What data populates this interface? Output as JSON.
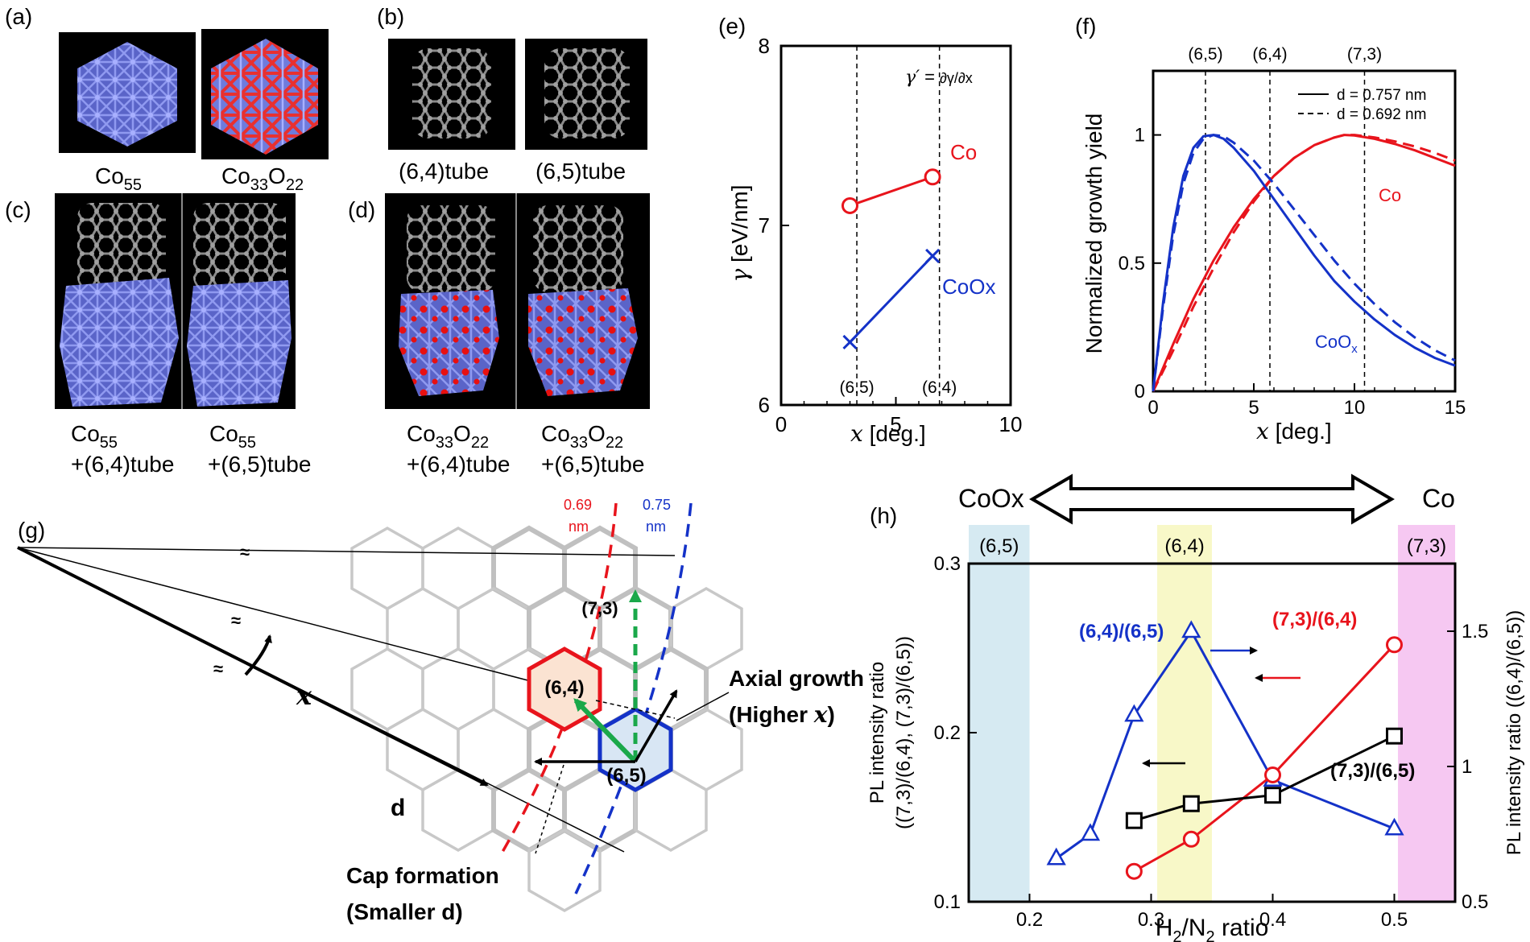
{
  "panels": {
    "a": {
      "tag": "(a)",
      "cap1_main": "Co",
      "cap1_sub": "55",
      "cap2_co": "Co",
      "cap2_sub1": "33",
      "cap2_o": "O",
      "cap2_sub2": "22"
    },
    "b": {
      "tag": "(b)",
      "cap1": "(6,4)tube",
      "cap2": "(6,5)tube"
    },
    "c": {
      "tag": "(c)",
      "cap1_main": "Co",
      "cap1_sub": "55",
      "cap1_line2": "+(6,4)tube",
      "cap2_main": "Co",
      "cap2_sub": "55",
      "cap2_line2": "+(6,5)tube"
    },
    "d": {
      "tag": "(d)",
      "cap_co": "Co",
      "cap_sub1": "33",
      "cap_o": "O",
      "cap_sub2": "22",
      "cap1_line2": "+(6,4)tube",
      "cap2_line2": "+(6,5)tube"
    },
    "g": {
      "tag": "(g)",
      "x_label": "x",
      "d_label": "d",
      "red_label": "0.69",
      "red_unit": "nm",
      "blue_label": "0.75",
      "blue_unit": "nm",
      "hex_73": "(7,3)",
      "hex_64": "(6,4)",
      "hex_65": "(6,5)",
      "axial1": "Axial growth",
      "axial2": "(Higher ",
      "axial2_x": "x",
      "axial2_end": ")",
      "cap1": "Cap formation",
      "cap2": "(Smaller d)",
      "break_mark": "≈"
    },
    "h_header": {
      "left": "CoOx",
      "right": "Co"
    }
  },
  "colors": {
    "red": "#e8141c",
    "blue": "#1432c8",
    "green": "#1aa84a",
    "cobalt": "#6f7bdc",
    "oxygen": "#e81010",
    "carbon": "#8a8a8a"
  },
  "chart_data": [
    {
      "id": "e",
      "type": "line",
      "tag": "(e)",
      "xlabel": "x",
      "xlabel_unit": " [deg.]",
      "ylabel": "γ",
      "ylabel_unit": " [eV/nm]",
      "xlim": [
        0,
        10
      ],
      "ylim": [
        6,
        8
      ],
      "xticks": [
        "0",
        "5",
        "10"
      ],
      "yticks": [
        "6",
        "7",
        "8"
      ],
      "vlines": [
        {
          "x": 3.3,
          "label": "(6,5)"
        },
        {
          "x": 6.9,
          "label": "(6,4)"
        }
      ],
      "formula": "γ′ = ∂γ/∂x",
      "series": [
        {
          "name": "Co",
          "color": "#e8141c",
          "marker": "circle",
          "x": [
            3.0,
            6.6
          ],
          "y": [
            7.11,
            7.27
          ]
        },
        {
          "name": "CoOx",
          "color": "#1432c8",
          "marker": "x",
          "x": [
            3.0,
            6.6
          ],
          "y": [
            6.35,
            6.83
          ]
        }
      ]
    },
    {
      "id": "f",
      "type": "line",
      "tag": "(f)",
      "xlabel": "x",
      "xlabel_unit": " [deg.]",
      "ylabel": "Normalized growth yield",
      "xlim": [
        0,
        15
      ],
      "ylim": [
        0,
        1.25
      ],
      "xticks": [
        "0",
        "5",
        "10",
        "15"
      ],
      "yticks": [
        "0",
        "0.5",
        "1"
      ],
      "top_labels": [
        {
          "x": 2.6,
          "label": "(6,5)"
        },
        {
          "x": 5.8,
          "label": "(6,4)"
        },
        {
          "x": 10.5,
          "label": "(7,3)"
        }
      ],
      "vlines": [
        2.6,
        5.8,
        10.5
      ],
      "legend": [
        "d = 0.757 nm",
        "d = 0.692 nm"
      ],
      "series_labels": {
        "co": "Co",
        "coox_main": "CoO",
        "coox_sub": "x"
      },
      "series": [
        {
          "name": "Co d=0.757",
          "color": "#e8141c",
          "dash": false,
          "peak": 9.5,
          "x": [
            0,
            1,
            2,
            3,
            4,
            5,
            6,
            7,
            8,
            9,
            9.5,
            10,
            11,
            12,
            13,
            14,
            15
          ],
          "y": [
            0,
            0.185,
            0.36,
            0.51,
            0.64,
            0.75,
            0.84,
            0.91,
            0.96,
            0.99,
            1.0,
            0.998,
            0.985,
            0.965,
            0.94,
            0.91,
            0.88
          ]
        },
        {
          "name": "Co d=0.692",
          "color": "#e8141c",
          "dash": true,
          "peak": 9.5,
          "x": [
            0,
            1,
            2,
            3,
            4,
            5,
            6,
            7,
            8,
            9,
            9.5,
            10,
            11,
            12,
            13,
            14,
            15
          ],
          "y": [
            0,
            0.16,
            0.33,
            0.48,
            0.62,
            0.74,
            0.84,
            0.91,
            0.96,
            0.99,
            1.0,
            1.0,
            0.99,
            0.975,
            0.955,
            0.93,
            0.9
          ]
        },
        {
          "name": "CoOx d=0.757",
          "color": "#1432c8",
          "dash": false,
          "peak": 3.0,
          "x": [
            0,
            0.5,
            1,
            1.5,
            2,
            2.5,
            3,
            3.5,
            4,
            5,
            6,
            7,
            8,
            9,
            10,
            11,
            12,
            13,
            14,
            15
          ],
          "y": [
            0,
            0.35,
            0.64,
            0.84,
            0.95,
            0.995,
            1.0,
            0.985,
            0.95,
            0.86,
            0.75,
            0.64,
            0.53,
            0.43,
            0.35,
            0.28,
            0.22,
            0.17,
            0.13,
            0.1
          ]
        },
        {
          "name": "CoOx d=0.692",
          "color": "#1432c8",
          "dash": true,
          "peak": 3.2,
          "x": [
            0,
            0.5,
            1,
            1.5,
            2,
            2.5,
            3,
            3.5,
            4,
            5,
            6,
            7,
            8,
            9,
            10,
            11,
            12,
            13,
            14,
            15
          ],
          "y": [
            0,
            0.33,
            0.61,
            0.81,
            0.93,
            0.985,
            1.0,
            0.995,
            0.97,
            0.9,
            0.81,
            0.71,
            0.61,
            0.51,
            0.42,
            0.34,
            0.27,
            0.21,
            0.16,
            0.12
          ]
        }
      ]
    },
    {
      "id": "h",
      "type": "line",
      "tag": "(h)",
      "xlabel_main": "H",
      "xlabel_sub1": "2",
      "xlabel_mid": "/N",
      "xlabel_sub2": "2",
      "xlabel_end": " ratio",
      "ylabel_left1": "PL intensity ratio",
      "ylabel_left2": "((7,3)/(6,4), (7,3)/(6,5))",
      "ylabel_right": "PL intensity ratio ((6,4)/(6,5))",
      "xlim": [
        0.15,
        0.55
      ],
      "ylim_left": [
        0.1,
        0.3
      ],
      "ylim_right": [
        0.5,
        1.75
      ],
      "xticks": [
        "0.2",
        "0.3",
        "0.4",
        "0.5"
      ],
      "yticks_left": [
        "0.1",
        "0.2",
        "0.3"
      ],
      "yticks_right": [
        "0.5",
        "1",
        "1.5"
      ],
      "bands": [
        {
          "label": "(6,5)",
          "x0": 0.15,
          "x1": 0.2,
          "color": "#d6eaf2"
        },
        {
          "label": "(6,4)",
          "x0": 0.305,
          "x1": 0.35,
          "color": "#f8f8c8"
        },
        {
          "label": "(7,3)",
          "x0": 0.503,
          "x1": 0.55,
          "color": "#f6c8f2"
        }
      ],
      "series": [
        {
          "name": "(6,4)/(6,5)",
          "axis": "right",
          "color": "#1432c8",
          "marker": "triangle",
          "x": [
            0.222,
            0.25,
            0.286,
            0.333,
            0.4,
            0.5
          ],
          "y": [
            0.66,
            0.75,
            1.19,
            1.5,
            0.95,
            0.77
          ]
        },
        {
          "name": "(7,3)/(6,4)",
          "axis": "left",
          "color": "#e8141c",
          "marker": "circle",
          "x": [
            0.286,
            0.333,
            0.4,
            0.5
          ],
          "y": [
            0.118,
            0.137,
            0.175,
            0.252
          ]
        },
        {
          "name": "(7,3)/(6,5)",
          "axis": "left",
          "color": "#000000",
          "marker": "square",
          "x": [
            0.286,
            0.333,
            0.4,
            0.5
          ],
          "y": [
            0.148,
            0.158,
            0.163,
            0.198
          ]
        }
      ]
    }
  ]
}
